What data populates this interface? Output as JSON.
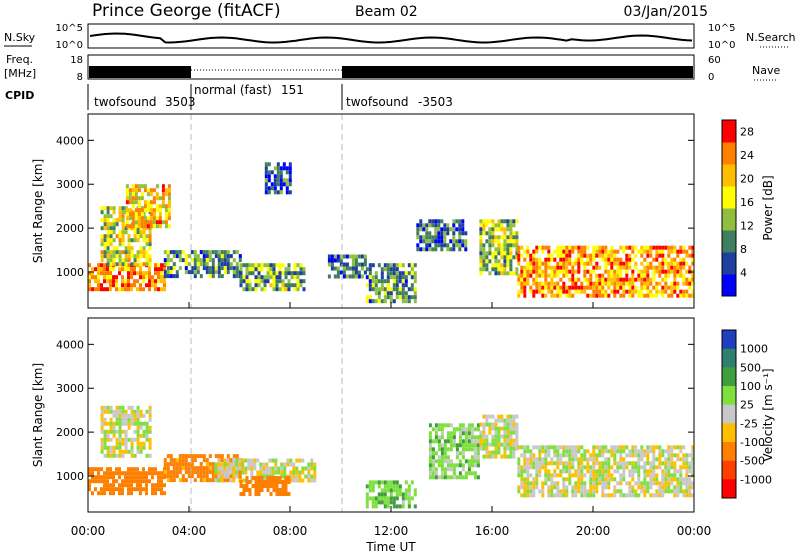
{
  "header": {
    "station": "Prince George (fitACF)",
    "beam": "Beam 02",
    "date": "03/Jan/2015"
  },
  "noise_panel": {
    "left_label": "N.Sky",
    "right_label": "N.Search",
    "left_ticks": [
      "10^5",
      "10^0"
    ],
    "right_ticks": [
      "10^5",
      "10^0"
    ]
  },
  "freq_panel": {
    "left_label_line1": "Freq.",
    "left_label_line2": "[MHz]",
    "left_ticks": [
      "18",
      "8"
    ],
    "right_label": "Nave",
    "right_ticks": [
      "60",
      "0"
    ]
  },
  "cpid_panel": {
    "label": "CPID",
    "modes": [
      {
        "name": "twofsound",
        "id": "3503",
        "start_hour": 0
      },
      {
        "name": "normal (fast)",
        "id": "151",
        "start_hour": 4
      },
      {
        "name": "twofsound",
        "id": "-3503",
        "start_hour": 10
      }
    ]
  },
  "x_axis": {
    "title": "Time UT",
    "ticks": [
      "00:00",
      "04:00",
      "08:00",
      "12:00",
      "16:00",
      "20:00",
      "00:00"
    ]
  },
  "power_panel": {
    "ylabel": "Slant Range [km]",
    "yticks": [
      "1000",
      "2000",
      "3000",
      "4000"
    ],
    "colorbar_label": "Power [dB]",
    "colorbar_ticks": [
      "28",
      "24",
      "20",
      "16",
      "12",
      "8",
      "4"
    ]
  },
  "velocity_panel": {
    "ylabel": "Slant Range [km]",
    "yticks": [
      "1000",
      "2000",
      "3000",
      "4000"
    ],
    "colorbar_label": "Velocity [m s⁻¹]",
    "colorbar_ticks": [
      "1000",
      "500",
      "100",
      "25",
      "-25",
      "-100",
      "-500",
      "-1000"
    ]
  },
  "chart_data": [
    {
      "type": "heatmap",
      "title": "Power",
      "xlabel": "Time UT",
      "ylabel": "Slant Range [km]",
      "xlim": [
        0,
        24
      ],
      "ylim": [
        180,
        4600
      ],
      "colorbar": {
        "label": "Power [dB]",
        "range": [
          0,
          30
        ],
        "colors": [
          "#0000ff",
          "#1f3f9f",
          "#3f7f5f",
          "#8fbf3f",
          "#ffff00",
          "#ffbf00",
          "#ff7f00",
          "#ff0000"
        ]
      },
      "regions": [
        {
          "t": [
            0.0,
            3.0
          ],
          "r": [
            600,
            1200
          ],
          "level": 24
        },
        {
          "t": [
            0.5,
            2.5
          ],
          "r": [
            1200,
            2500
          ],
          "level": 16
        },
        {
          "t": [
            1.5,
            3.2
          ],
          "r": [
            2000,
            3000
          ],
          "level": 20
        },
        {
          "t": [
            3.0,
            6.0
          ],
          "r": [
            900,
            1500
          ],
          "level": 10
        },
        {
          "t": [
            6.0,
            8.5
          ],
          "r": [
            600,
            1200
          ],
          "level": 12
        },
        {
          "t": [
            7.0,
            8.0
          ],
          "r": [
            2800,
            3500
          ],
          "level": 6
        },
        {
          "t": [
            9.5,
            11.0
          ],
          "r": [
            900,
            1400
          ],
          "level": 8
        },
        {
          "t": [
            11.0,
            13.0
          ],
          "r": [
            300,
            1200
          ],
          "level": 10
        },
        {
          "t": [
            13.0,
            15.0
          ],
          "r": [
            1500,
            2200
          ],
          "level": 8
        },
        {
          "t": [
            15.5,
            17.0
          ],
          "r": [
            1000,
            2200
          ],
          "level": 14
        },
        {
          "t": [
            17.0,
            24.0
          ],
          "r": [
            500,
            1600
          ],
          "level": 22
        }
      ]
    },
    {
      "type": "heatmap",
      "title": "Velocity",
      "xlabel": "Time UT",
      "ylabel": "Slant Range [km]",
      "xlim": [
        0,
        24
      ],
      "ylim": [
        180,
        4600
      ],
      "colorbar": {
        "label": "Velocity [m s⁻¹]",
        "bins": [
          1000,
          500,
          100,
          25,
          -25,
          -100,
          -500,
          -1000
        ],
        "colors": [
          "#1f3fbf",
          "#2f7f6f",
          "#3f9f3f",
          "#7fdf3f",
          "#c8c8c8",
          "#ffbf00",
          "#ff7f00",
          "#ff3f00",
          "#ff0000"
        ]
      },
      "regions": [
        {
          "t": [
            0.0,
            3.0
          ],
          "r": [
            600,
            1200
          ],
          "velocity": -300
        },
        {
          "t": [
            0.5,
            2.5
          ],
          "r": [
            1500,
            2600
          ],
          "velocity": 0
        },
        {
          "t": [
            3.0,
            6.0
          ],
          "r": [
            900,
            1500
          ],
          "velocity": -150
        },
        {
          "t": [
            5.0,
            9.0
          ],
          "r": [
            900,
            1400
          ],
          "velocity": 0
        },
        {
          "t": [
            6.0,
            8.0
          ],
          "r": [
            600,
            1000
          ],
          "velocity": -200
        },
        {
          "t": [
            11.0,
            13.0
          ],
          "r": [
            300,
            900
          ],
          "velocity": 80
        },
        {
          "t": [
            13.5,
            15.5
          ],
          "r": [
            1000,
            2200
          ],
          "velocity": 60
        },
        {
          "t": [
            15.5,
            17.0
          ],
          "r": [
            1400,
            2400
          ],
          "velocity": 0
        },
        {
          "t": [
            17.0,
            24.0
          ],
          "r": [
            600,
            1700
          ],
          "velocity": 0
        }
      ]
    }
  ]
}
